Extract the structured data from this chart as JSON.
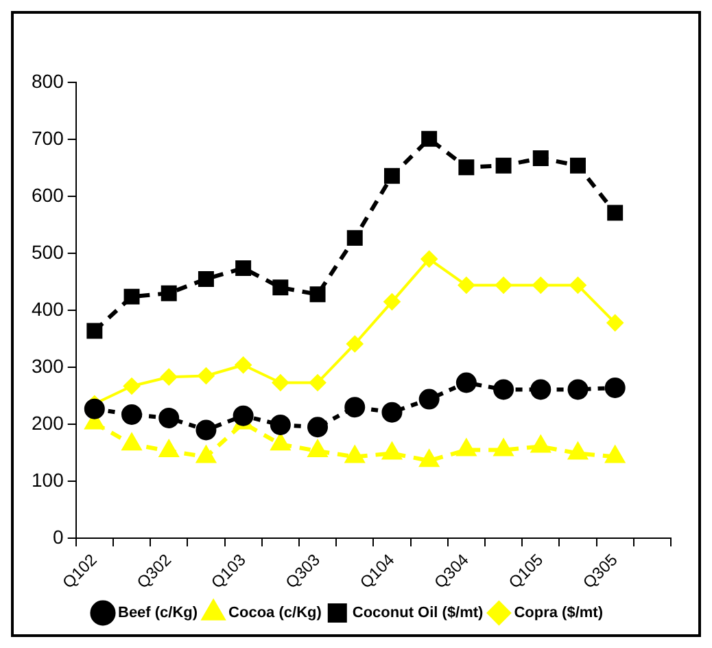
{
  "chart_data": {
    "type": "line",
    "categories": [
      "Q102",
      null,
      "Q302",
      null,
      "Q103",
      null,
      "Q303",
      null,
      "Q104",
      null,
      "Q304",
      null,
      "Q105",
      null,
      "Q305",
      null
    ],
    "series": [
      {
        "name": "Copra ($/mt)",
        "color": "#ffff00",
        "marker": "diamond",
        "line_style": "solid",
        "values": [
          236,
          267,
          283,
          285,
          304,
          273,
          273,
          341,
          415,
          490,
          444,
          444,
          444,
          444,
          378,
          null
        ]
      },
      {
        "name": "Coconut Oil ($/mt)",
        "color": "#000000",
        "marker": "square",
        "line_style": "dashed",
        "values": [
          364,
          424,
          430,
          455,
          474,
          440,
          428,
          527,
          636,
          701,
          651,
          654,
          667,
          654,
          571,
          null
        ]
      },
      {
        "name": "Cocoa (c/Kg)",
        "color": "#ffff00",
        "marker": "triangle",
        "line_style": "dashed",
        "values": [
          202,
          165,
          153,
          143,
          202,
          165,
          153,
          143,
          149,
          136,
          155,
          155,
          161,
          149,
          143,
          null
        ]
      },
      {
        "name": "Beef (c/Kg)",
        "color": "#000000",
        "marker": "circle",
        "line_style": "dotted",
        "values": [
          227,
          217,
          211,
          190,
          215,
          199,
          195,
          230,
          221,
          244,
          273,
          261,
          261,
          261,
          264,
          null
        ]
      }
    ],
    "ylim": [
      0,
      800
    ],
    "yticks": [
      0,
      100,
      200,
      300,
      400,
      500,
      600,
      700,
      800
    ],
    "legend": "bottom"
  }
}
